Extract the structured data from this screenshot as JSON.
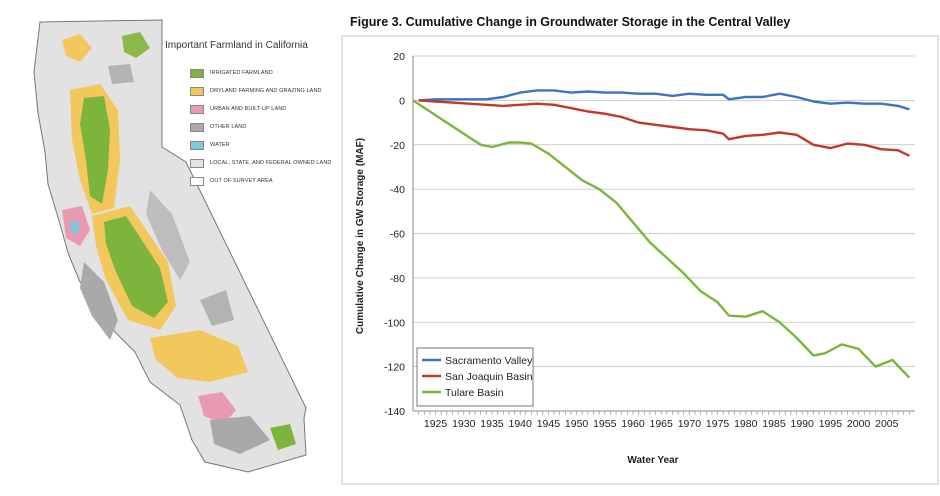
{
  "map": {
    "title": "Important Farmland in California",
    "legend": [
      {
        "label": "IRRIGATED FARMLAND",
        "color": "#7db53c"
      },
      {
        "label": "DRYLAND FARMING AND GRAZING LAND",
        "color": "#f2c75c"
      },
      {
        "label": "URBAN AND BUILT-UP LAND",
        "color": "#e99ab0"
      },
      {
        "label": "OTHER LAND",
        "color": "#a9a9a9"
      },
      {
        "label": "WATER",
        "color": "#7fc6e0"
      },
      {
        "label": "LOCAL, STATE, AND FEDERAL OWNED LAND",
        "color": "#e3e3e3"
      },
      {
        "label": "OUT OF SURVEY AREA",
        "color": "#ffffff"
      }
    ]
  },
  "chart_data": {
    "type": "line",
    "title": "Figure 3. Cumulative Change in Groundwater Storage in the Central Valley",
    "xlabel": "Water Year",
    "ylabel": "Cumulative Change in GW Storage (MAF)",
    "xlim": [
      1921,
      2010
    ],
    "ylim": [
      -140,
      20
    ],
    "xticks": [
      1925,
      1930,
      1935,
      1940,
      1945,
      1950,
      1955,
      1960,
      1965,
      1970,
      1975,
      1980,
      1985,
      1990,
      1995,
      2000,
      2005
    ],
    "yticks": [
      20,
      0,
      -20,
      -40,
      -60,
      -80,
      -100,
      -120,
      -140
    ],
    "grid": true,
    "legend_position": "bottom-left",
    "series": [
      {
        "name": "Sacramento Valley",
        "color": "#3a74c2",
        "x": [
          1922,
          1925,
          1928,
          1931,
          1934,
          1937,
          1940,
          1943,
          1946,
          1949,
          1952,
          1955,
          1958,
          1961,
          1964,
          1967,
          1970,
          1973,
          1976,
          1977,
          1980,
          1983,
          1986,
          1989,
          1992,
          1995,
          1998,
          2001,
          2004,
          2007,
          2009
        ],
        "y": [
          0,
          0.5,
          0.5,
          0.5,
          0.5,
          1.5,
          3.5,
          4.5,
          4.5,
          3.5,
          4,
          3.5,
          3.5,
          3,
          3,
          2,
          3,
          2.5,
          2.5,
          0.5,
          1.5,
          1.5,
          3,
          1.5,
          -0.5,
          -1.5,
          -1,
          -1.5,
          -1.5,
          -2.5,
          -4
        ]
      },
      {
        "name": "San Joaquin Basin",
        "color": "#c0392b",
        "x": [
          1922,
          1925,
          1928,
          1931,
          1934,
          1937,
          1940,
          1943,
          1946,
          1949,
          1952,
          1955,
          1958,
          1961,
          1964,
          1967,
          1970,
          1973,
          1976,
          1977,
          1980,
          1983,
          1986,
          1989,
          1992,
          1995,
          1998,
          2001,
          2004,
          2007,
          2009
        ],
        "y": [
          0,
          -0.5,
          -1,
          -1.5,
          -2,
          -2.5,
          -2,
          -1.5,
          -2,
          -3.5,
          -5,
          -6,
          -7.5,
          -10,
          -11,
          -12,
          -13,
          -13.5,
          -15,
          -17.5,
          -16,
          -15.5,
          -14.5,
          -15.5,
          -20,
          -21.5,
          -19.5,
          -20,
          -22,
          -22.5,
          -25
        ]
      },
      {
        "name": "Tulare Basin",
        "color": "#7bb53a",
        "x": [
          1921,
          1924,
          1927,
          1930,
          1933,
          1935,
          1938,
          1940,
          1942,
          1945,
          1948,
          1951,
          1954,
          1957,
          1960,
          1963,
          1966,
          1969,
          1972,
          1975,
          1977,
          1980,
          1983,
          1986,
          1989,
          1992,
          1994,
          1997,
          2000,
          2003,
          2006,
          2009
        ],
        "y": [
          0,
          -5,
          -10,
          -15,
          -20,
          -21,
          -19,
          -19,
          -19.5,
          -24,
          -30,
          -36,
          -40,
          -46,
          -55,
          -64,
          -71,
          -78,
          -86,
          -91,
          -97,
          -97.5,
          -95,
          -100,
          -107,
          -115,
          -114,
          -110,
          -112,
          -120,
          -117,
          -125
        ]
      }
    ]
  }
}
